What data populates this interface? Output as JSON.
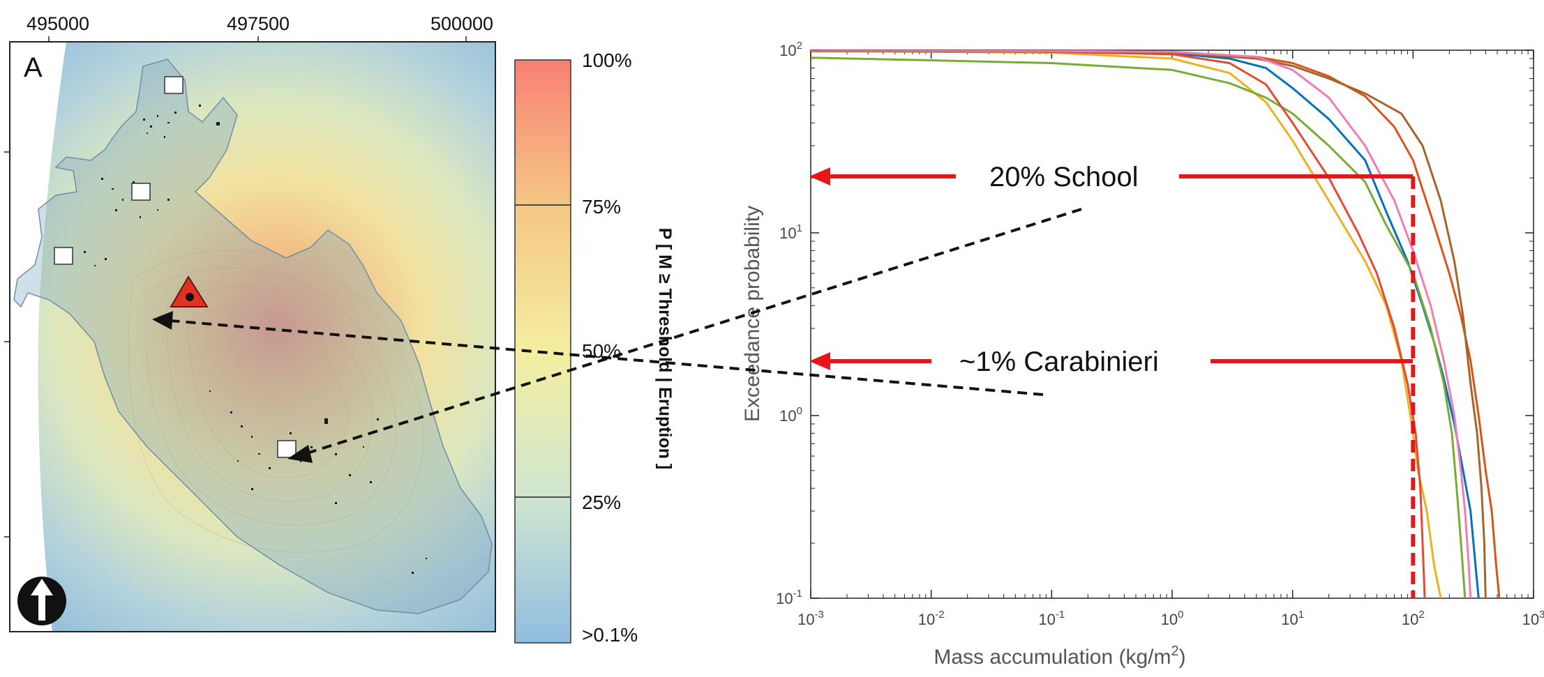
{
  "map_panel": {
    "panel_letter": "A",
    "x_ticks": [
      "495000",
      "497500",
      "500000"
    ],
    "icons": [
      "north-arrow-icon",
      "vent-triangle-icon",
      "building-marker-icon"
    ],
    "colors": {
      "sea": "#8fbcd9",
      "island": "#9db8c6",
      "hot": "#f08a6a",
      "warm": "#f3cc82",
      "mild": "#eef0a0",
      "vent": "#e0321c"
    }
  },
  "colorbar": {
    "title": "P [ M ≥ Threshold | Eruption ]",
    "tick_labels": [
      "100%",
      "75%",
      "50%",
      "25%",
      ">0.1%"
    ],
    "levels": [
      1.0,
      0.75,
      0.5,
      0.25,
      0.001
    ],
    "colors": [
      "#f98074",
      "#f5c784",
      "#f4eea0",
      "#cfe6d0",
      "#90bde0"
    ]
  },
  "annotations": {
    "school_label": "20% School",
    "carabinieri_label": "~1% Carabinieri",
    "arrow_color": "#e8161b"
  },
  "chart_data": {
    "type": "line",
    "xlabel": "Mass accumulation (kg/m",
    "xlabel_sup": "2",
    "xlabel_close": ")",
    "ylabel": "Exceedance probability",
    "x_scale": "log",
    "y_scale": "log",
    "xlim": [
      0.001,
      1000
    ],
    "ylim": [
      0.1,
      100
    ],
    "x_tick_values": [
      0.001,
      0.01,
      0.1,
      1,
      10,
      100,
      1000
    ],
    "x_tick_labels": [
      [
        "10",
        "-3"
      ],
      [
        "10",
        "-2"
      ],
      [
        "10",
        "-1"
      ],
      [
        "10",
        "0"
      ],
      [
        "10",
        "1"
      ],
      [
        "10",
        "2"
      ],
      [
        "10",
        "3"
      ]
    ],
    "y_tick_values": [
      0.1,
      1,
      10,
      100
    ],
    "y_tick_labels": [
      [
        "10",
        "-1"
      ],
      [
        "10",
        "0"
      ],
      [
        "10",
        "1"
      ],
      [
        "10",
        "2"
      ]
    ],
    "threshold_x": 100,
    "threshold_color": "#e8161b",
    "grid": false,
    "legend": "none",
    "series": [
      {
        "color": "#0072bd",
        "points": [
          [
            0.001,
            99
          ],
          [
            0.1,
            98
          ],
          [
            1,
            96
          ],
          [
            3,
            90
          ],
          [
            6,
            80
          ],
          [
            10,
            62
          ],
          [
            20,
            42
          ],
          [
            40,
            25
          ],
          [
            60,
            13
          ],
          [
            90,
            7
          ],
          [
            120,
            4
          ],
          [
            150,
            2.5
          ],
          [
            180,
            1.6
          ],
          [
            220,
            0.9
          ],
          [
            260,
            0.5
          ],
          [
            300,
            0.3
          ],
          [
            330,
            0.15
          ],
          [
            350,
            0.1
          ]
        ]
      },
      {
        "color": "#d95319",
        "points": [
          [
            0.001,
            99
          ],
          [
            0.1,
            98
          ],
          [
            1,
            97
          ],
          [
            5,
            92
          ],
          [
            10,
            85
          ],
          [
            20,
            72
          ],
          [
            40,
            56
          ],
          [
            70,
            38
          ],
          [
            100,
            25
          ],
          [
            150,
            11
          ],
          [
            200,
            6
          ],
          [
            250,
            3.5
          ],
          [
            300,
            2
          ],
          [
            350,
            1
          ],
          [
            400,
            0.5
          ],
          [
            450,
            0.3
          ],
          [
            490,
            0.15
          ],
          [
            520,
            0.1
          ]
        ]
      },
      {
        "color": "#edb120",
        "points": [
          [
            0.001,
            99
          ],
          [
            0.1,
            97
          ],
          [
            1,
            90
          ],
          [
            3,
            75
          ],
          [
            6,
            52
          ],
          [
            10,
            32
          ],
          [
            20,
            15
          ],
          [
            40,
            7
          ],
          [
            60,
            4
          ],
          [
            80,
            2
          ],
          [
            95,
            1
          ],
          [
            110,
            0.5
          ],
          [
            130,
            0.3
          ],
          [
            150,
            0.15
          ],
          [
            170,
            0.1
          ]
        ]
      },
      {
        "color": "#77ac30",
        "points": [
          [
            0.001,
            91
          ],
          [
            0.01,
            88
          ],
          [
            0.1,
            85
          ],
          [
            1,
            78
          ],
          [
            3,
            66
          ],
          [
            6,
            55
          ],
          [
            10,
            45
          ],
          [
            20,
            30
          ],
          [
            40,
            19
          ],
          [
            60,
            11
          ],
          [
            100,
            6
          ],
          [
            140,
            3
          ],
          [
            180,
            1.5
          ],
          [
            210,
            0.8
          ],
          [
            230,
            0.4
          ],
          [
            250,
            0.2
          ],
          [
            270,
            0.1
          ]
        ]
      },
      {
        "color": "#e24a33",
        "points": [
          [
            0.001,
            99
          ],
          [
            0.1,
            98
          ],
          [
            1,
            95
          ],
          [
            3,
            85
          ],
          [
            6,
            65
          ],
          [
            10,
            40
          ],
          [
            20,
            20
          ],
          [
            35,
            10
          ],
          [
            50,
            6
          ],
          [
            70,
            3
          ],
          [
            90,
            1.5
          ],
          [
            105,
            0.8
          ],
          [
            115,
            0.4
          ],
          [
            120,
            0.2
          ],
          [
            125,
            0.1
          ]
        ]
      },
      {
        "color": "#a2652a",
        "points": [
          [
            0.001,
            99
          ],
          [
            0.1,
            98
          ],
          [
            1,
            97
          ],
          [
            5,
            90
          ],
          [
            10,
            82
          ],
          [
            20,
            70
          ],
          [
            40,
            58
          ],
          [
            80,
            45
          ],
          [
            120,
            30
          ],
          [
            170,
            15
          ],
          [
            220,
            7
          ],
          [
            260,
            3.5
          ],
          [
            300,
            1.5
          ],
          [
            340,
            0.8
          ],
          [
            370,
            0.4
          ],
          [
            390,
            0.2
          ],
          [
            400,
            0.1
          ]
        ]
      },
      {
        "color": "#f27ab6",
        "points": [
          [
            0.001,
            100
          ],
          [
            0.1,
            99
          ],
          [
            1,
            98
          ],
          [
            5,
            92
          ],
          [
            10,
            78
          ],
          [
            20,
            55
          ],
          [
            40,
            30
          ],
          [
            70,
            15
          ],
          [
            100,
            8
          ],
          [
            140,
            4
          ],
          [
            180,
            2
          ],
          [
            220,
            1
          ],
          [
            250,
            0.5
          ],
          [
            270,
            0.3
          ],
          [
            290,
            0.15
          ],
          [
            300,
            0.1
          ]
        ]
      }
    ]
  }
}
